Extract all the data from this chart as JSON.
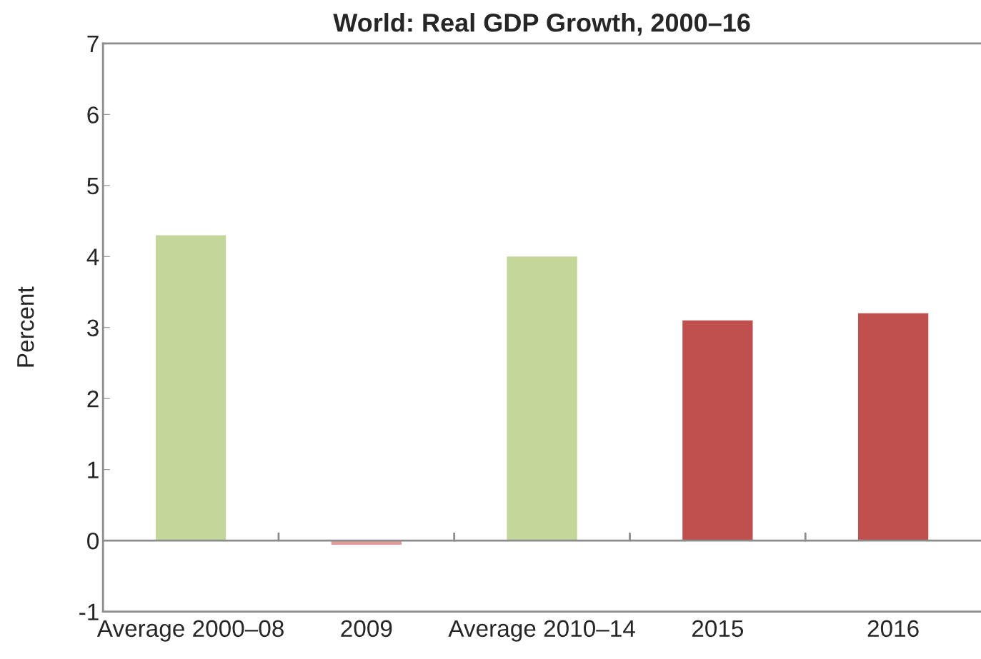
{
  "chart_data": {
    "type": "bar",
    "title": "World: Real GDP Growth, 2000–16",
    "ylabel": "Percent",
    "categories": [
      "Average 2000–08",
      "2009",
      "Average 2010–14",
      "2015",
      "2016"
    ],
    "values": [
      4.3,
      -0.06,
      4.0,
      3.1,
      3.2
    ],
    "colors": [
      "#c4d79b",
      "#e6999a",
      "#c4d79b",
      "#c0504d",
      "#c0504d"
    ],
    "ylim": [
      -1,
      7
    ],
    "yticks": [
      -1,
      0,
      1,
      2,
      3,
      4,
      5,
      6,
      7
    ],
    "ref_lines": [
      {
        "axis": "y",
        "value": 0,
        "color": "#8c8c8c"
      }
    ],
    "grid": false
  }
}
